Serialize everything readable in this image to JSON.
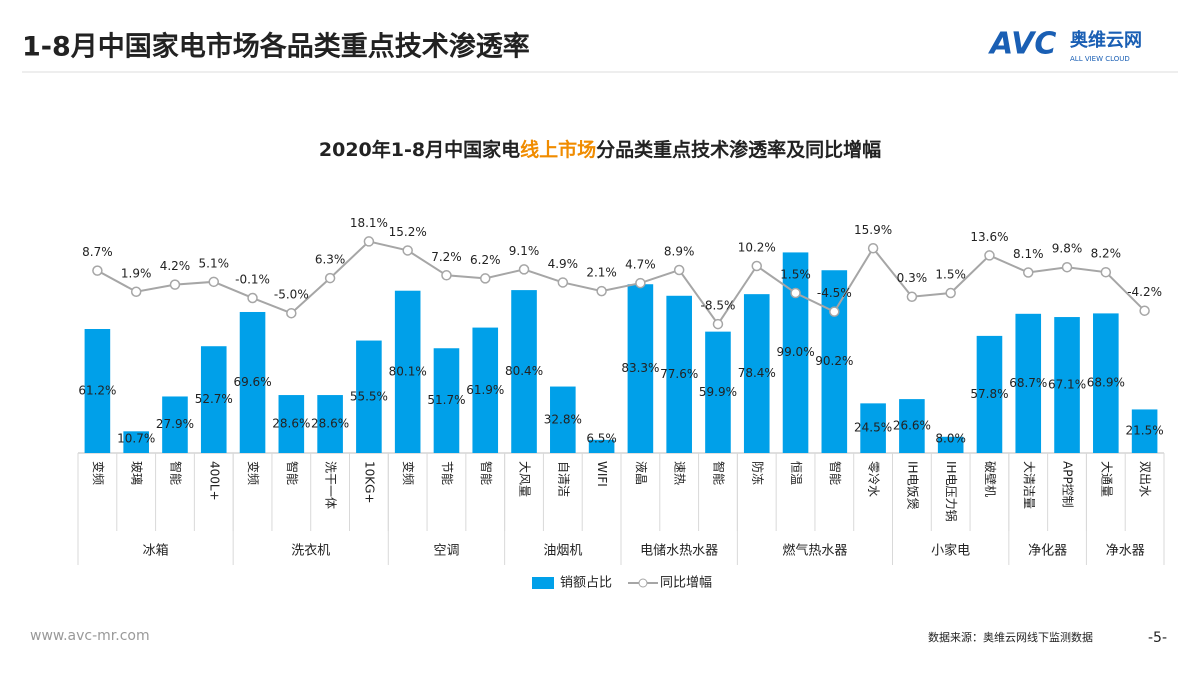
{
  "header": {
    "title": "1-8月中国家电市场各品类重点技术渗透率"
  },
  "logo": {
    "mark": "AVC",
    "name": "奥维云网",
    "tagline": "ALL VIEW CLOUD"
  },
  "footer": {
    "url": "www.avc-mr.com",
    "source": "数据来源：奥维云网线下监测数据",
    "page": "-5-"
  },
  "chart_data": {
    "type": "bar",
    "title": [
      "2020年1-8月中国家电",
      "线上市场",
      "分品类重点技术渗透率及同比增幅"
    ],
    "title_highlight_color": "#f08c00",
    "categories": [
      "变频",
      "玻璃",
      "智能",
      "400L+",
      "变频",
      "智能",
      "洗干一体",
      "10KG+",
      "变频",
      "节能",
      "智能",
      "大风量",
      "自清洁",
      "WIFI",
      "液晶",
      "速热",
      "智能",
      "防冻",
      "恒温",
      "智能",
      "零冷水",
      "IH电饭煲",
      "IH电压力锅",
      "破壁机",
      "大清洁量",
      "APP控制",
      "大通量",
      "双出水"
    ],
    "groups": [
      {
        "name": "冰箱",
        "span": 4
      },
      {
        "name": "洗衣机",
        "span": 4
      },
      {
        "name": "空调",
        "span": 3
      },
      {
        "name": "油烟机",
        "span": 3
      },
      {
        "name": "电储水热水器",
        "span": 3
      },
      {
        "name": "燃气热水器",
        "span": 4
      },
      {
        "name": "小家电",
        "span": 3
      },
      {
        "name": "净化器",
        "span": 2
      },
      {
        "name": "净水器",
        "span": 2
      }
    ],
    "series": [
      {
        "name": "销额占比",
        "type": "bar",
        "color": "#00a0e9",
        "values": [
          61.2,
          10.7,
          27.9,
          52.7,
          69.6,
          28.6,
          28.6,
          55.5,
          80.1,
          51.7,
          61.9,
          80.4,
          32.8,
          6.5,
          83.3,
          77.6,
          59.9,
          78.4,
          99.0,
          90.2,
          24.5,
          26.6,
          8.0,
          57.8,
          68.7,
          67.1,
          68.9,
          21.5
        ],
        "value_labels": [
          "61.2%",
          "10.7%",
          "27.9%",
          "52.7%",
          "69.6%",
          "28.6%",
          "28.6%",
          "55.5%",
          "80.1%",
          "51.7%",
          "61.9%",
          "80.4%",
          "32.8%",
          "6.5%",
          "83.3%",
          "77.6%",
          "59.9%",
          "78.4%",
          "99.0%",
          "90.2%",
          "24.5%",
          "26.6%",
          "8.0%",
          "57.8%",
          "68.7%",
          "67.1%",
          "68.9%",
          "21.5%"
        ]
      },
      {
        "name": "同比增幅",
        "type": "line",
        "axis": "y2",
        "color": "#a6a6a6",
        "values": [
          8.7,
          1.9,
          4.2,
          5.1,
          -0.1,
          -5.0,
          6.3,
          18.1,
          15.2,
          7.2,
          6.2,
          9.1,
          4.9,
          2.1,
          4.7,
          8.9,
          -8.5,
          10.2,
          1.5,
          -4.5,
          15.9,
          0.3,
          1.5,
          13.6,
          8.1,
          9.8,
          8.2,
          -4.2
        ],
        "value_labels": [
          "8.7%",
          "1.9%",
          "4.2%",
          "5.1%",
          "-0.1%",
          "-5.0%",
          "6.3%",
          "18.1%",
          "15.2%",
          "7.2%",
          "6.2%",
          "9.1%",
          "4.9%",
          "2.1%",
          "4.7%",
          "8.9%",
          "-8.5%",
          "10.2%",
          "1.5%",
          "-4.5%",
          "15.9%",
          "0.3%",
          "1.5%",
          "13.6%",
          "8.1%",
          "9.8%",
          "8.2%",
          "-4.2%"
        ]
      }
    ],
    "ylim": [
      0,
      115
    ],
    "y2lim": [
      -50,
      25
    ],
    "legend": "bottom"
  }
}
